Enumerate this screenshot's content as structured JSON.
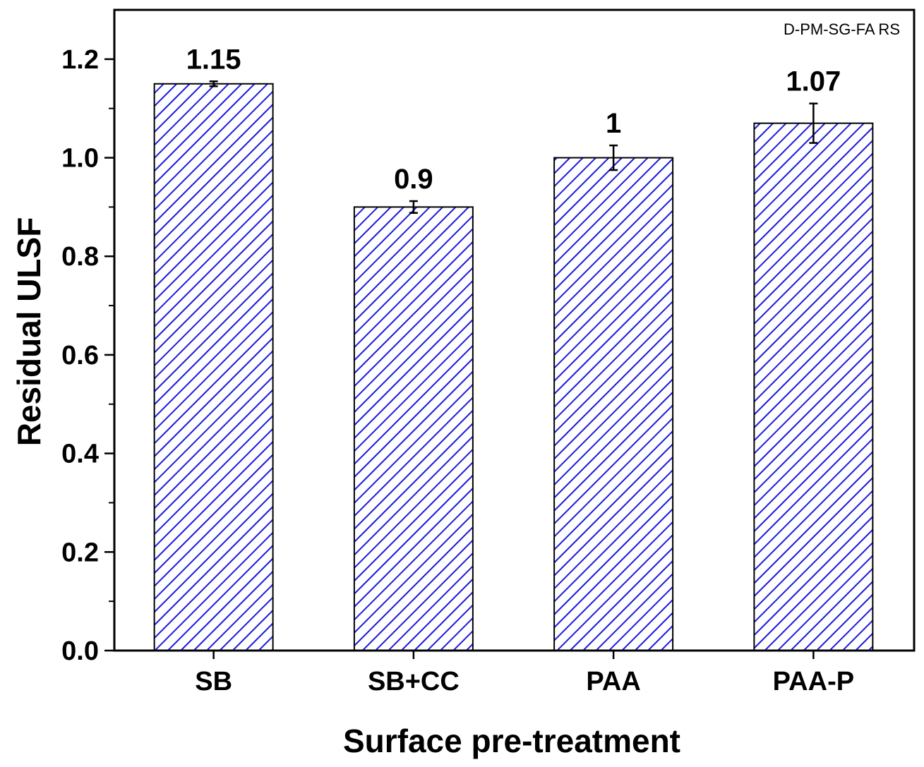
{
  "chart_data": {
    "type": "bar",
    "title": "",
    "annotation": "D-PM-SG-FA RS",
    "xlabel": "Surface pre-treatment",
    "ylabel": "Residual ULSF",
    "categories": [
      "SB",
      "SB+CC",
      "PAA",
      "PAA-P"
    ],
    "values": [
      1.15,
      0.9,
      1.0,
      1.07
    ],
    "value_labels": [
      "1.15",
      "0.9",
      "1",
      "1.07"
    ],
    "errors": [
      0.005,
      0.012,
      0.025,
      0.04
    ],
    "ylim": [
      0,
      1.3
    ],
    "yticks": [
      0.0,
      0.2,
      0.4,
      0.6,
      0.8,
      1.0,
      1.2
    ],
    "ytick_labels": [
      "0.0",
      "0.2",
      "0.4",
      "0.6",
      "0.8",
      "1.0",
      "1.2"
    ],
    "bar_fill": "hatched",
    "bar_color": "#1a1adb",
    "grid": false,
    "legend": "none"
  }
}
